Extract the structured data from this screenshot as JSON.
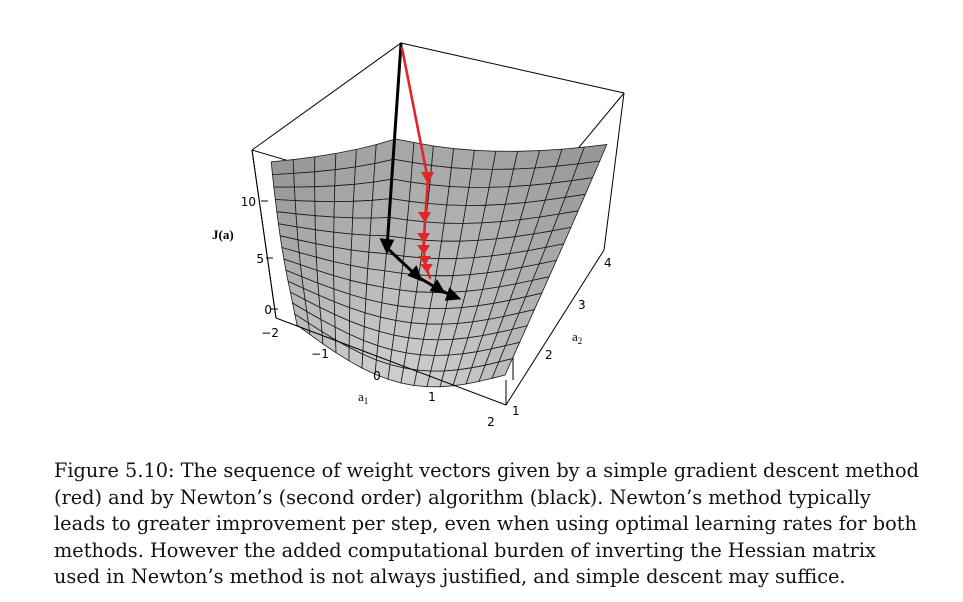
{
  "figure": {
    "z_axis_label": "J(a)",
    "z_ticks": [
      "0",
      "5",
      "10"
    ],
    "a1_label": "a",
    "a1_sub": "1",
    "a1_ticks": [
      "−2",
      "−1",
      "0",
      "1",
      "2"
    ],
    "a2_label": "a",
    "a2_sub": "2",
    "a2_ticks": [
      "1",
      "2",
      "3",
      "4"
    ],
    "colors": {
      "surface_high": "#8c8c8c",
      "surface_low": "#d6d6d6",
      "mesh": "#1a1a1a",
      "gradient_descent": "#e0262b",
      "newton": "#000000"
    }
  },
  "caption": {
    "lines": [
      "Figure 5.10: The sequence of weight vectors given by a simple gradient descent method",
      "(red) and by Newton’s (second order) algorithm (black). Newton’s method typically",
      "leads to greater improvement per step, even when using optimal learning rates for both",
      "methods. However the added computational burden of inverting the Hessian matrix",
      "used in Newton’s method is not always justified, and simple descent may suffice."
    ]
  }
}
